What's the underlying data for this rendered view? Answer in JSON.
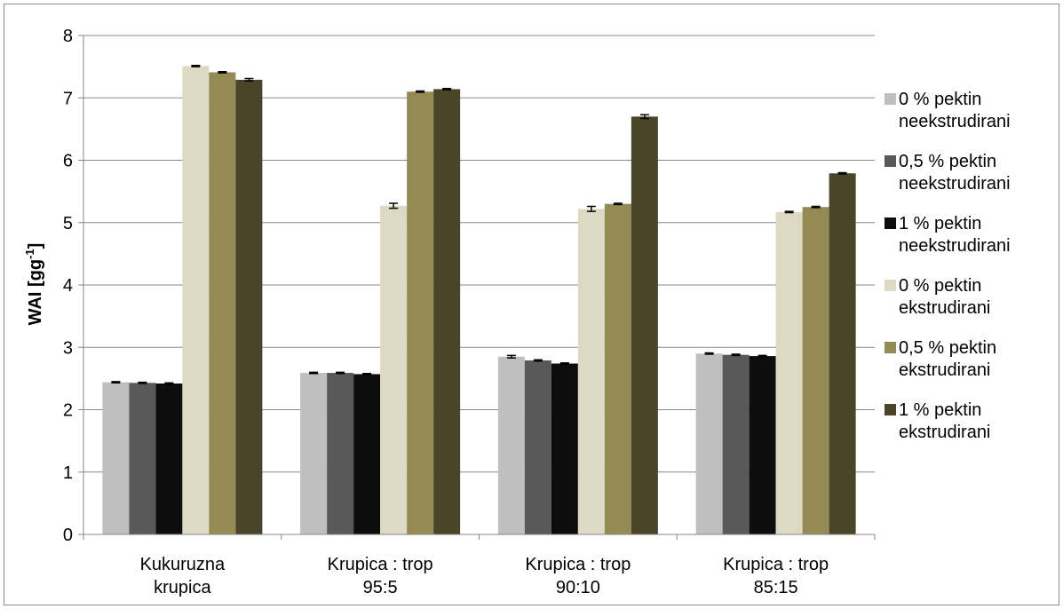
{
  "chart_data": {
    "type": "bar",
    "ylabel": "WAI [gg",
    "ylabel_sup": "-1",
    "ylabel_tail": "]",
    "xlabel": "",
    "ylim": [
      0,
      8
    ],
    "yticks": [
      0,
      1,
      2,
      3,
      4,
      5,
      6,
      7,
      8
    ],
    "grid": true,
    "legend_position": "right",
    "categories": [
      [
        "Kukuruzna",
        "krupica"
      ],
      [
        "Krupica : trop",
        "95:5"
      ],
      [
        "Krupica : trop",
        "90:10"
      ],
      [
        "Krupica : trop",
        "85:15"
      ]
    ],
    "series": [
      {
        "name": [
          "0 % pektin",
          "neekstrudirani"
        ],
        "color": "#bfbfbf",
        "values": [
          2.44,
          2.59,
          2.85,
          2.9
        ],
        "errors": [
          0.01,
          0.01,
          0.02,
          0.01
        ]
      },
      {
        "name": [
          "0,5 % pektin",
          "neekstrudirani"
        ],
        "color": "#595959",
        "values": [
          2.43,
          2.59,
          2.79,
          2.88
        ],
        "errors": [
          0.01,
          0.01,
          0.01,
          0.01
        ]
      },
      {
        "name": [
          "1 % pektin",
          "neekstrudirani"
        ],
        "color": "#0d0d0d",
        "values": [
          2.42,
          2.57,
          2.74,
          2.86
        ],
        "errors": [
          0.01,
          0.01,
          0.01,
          0.01
        ]
      },
      {
        "name": [
          "0 % pektin",
          "ekstrudirani"
        ],
        "color": "#ddd9c3",
        "values": [
          7.51,
          5.27,
          5.22,
          5.17
        ],
        "errors": [
          0.01,
          0.04,
          0.04,
          0.01
        ]
      },
      {
        "name": [
          "0,5 % pektin",
          "ekstrudirani"
        ],
        "color": "#948a54",
        "values": [
          7.41,
          7.1,
          5.3,
          5.25
        ],
        "errors": [
          0.01,
          0.01,
          0.01,
          0.01
        ]
      },
      {
        "name": [
          "1 % pektin",
          "ekstrudirani"
        ],
        "color": "#4a452a",
        "values": [
          7.29,
          7.14,
          6.7,
          5.79
        ],
        "errors": [
          0.02,
          0.01,
          0.03,
          0.01
        ]
      }
    ]
  }
}
